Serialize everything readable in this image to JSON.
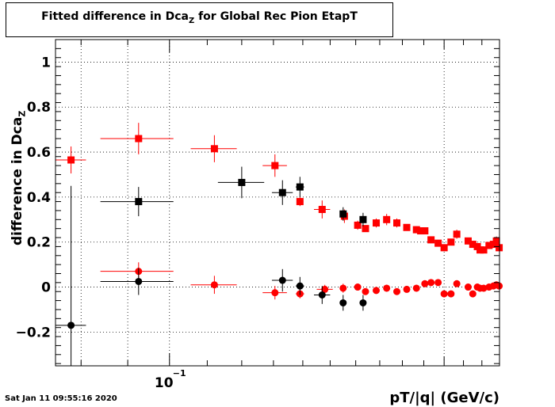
{
  "page": {
    "title_main": "Fitted difference in Dca",
    "title_sub": "Z",
    "title_rest": " for Global Rec Pion EtapT",
    "timestamp": "Sat Jan 11 09:55:16 2020"
  },
  "chart_data": {
    "type": "scatter",
    "title": "Fitted difference in Dca_Z for Global Rec Pion EtapT",
    "xlabel": "pT/|q| (GeV/c)",
    "ylabel": "difference in Dca_Z",
    "xscale": "log",
    "xlim": [
      0.075,
      0.23
    ],
    "ylim": [
      -0.35,
      1.1
    ],
    "yticks": [
      -0.2,
      0,
      0.2,
      0.4,
      0.6,
      0.8,
      1
    ],
    "ytick_labels": [
      "−0.2",
      "0",
      "0.2",
      "0.4",
      "0.6",
      "0.8",
      "1"
    ],
    "xticks": [
      0.1
    ],
    "xtick_labels": [
      "10",
      "−1"
    ],
    "grid": true,
    "colors": {
      "red": "#ff0000",
      "black": "#000000"
    },
    "series": [
      {
        "color": "#ff0000",
        "marker": "square",
        "x": [
          0.078,
          0.0925,
          0.112,
          0.1305,
          0.139,
          0.147,
          0.1555,
          0.1608,
          0.164,
          0.1685,
          0.173,
          0.1775,
          0.182,
          0.1865,
          0.1885,
          0.1905,
          0.1935,
          0.197,
          0.2,
          0.2035,
          0.2065,
          0.2125,
          0.215,
          0.2175,
          0.219,
          0.221,
          0.224,
          0.2265,
          0.2282,
          0.2298
        ],
        "y": [
          0.565,
          0.66,
          0.615,
          0.54,
          0.38,
          0.345,
          0.315,
          0.275,
          0.26,
          0.285,
          0.3,
          0.285,
          0.265,
          0.255,
          0.25,
          0.25,
          0.21,
          0.195,
          0.175,
          0.2,
          0.235,
          0.205,
          0.19,
          0.18,
          0.165,
          0.165,
          0.185,
          0.19,
          0.205,
          0.175
        ],
        "xerr": [
          0.003,
          0.0085,
          0.0065,
          0.004,
          0.0012,
          0.003,
          0.001,
          0.0006,
          0.0005,
          0.0006,
          0.0006,
          0.0006,
          0.0005,
          0.0005,
          0.0005,
          0.0005,
          0.0006,
          0.0006,
          0.0005,
          0.0005,
          0.0005,
          0.0004,
          0.0004,
          0.0004,
          0.0004,
          0.0004,
          0.0004,
          0.0004,
          0.0004,
          0.0004
        ],
        "yerr": [
          0.06,
          0.07,
          0.06,
          0.05,
          0.02,
          0.04,
          0.03,
          0.02,
          0.015,
          0.02,
          0.025,
          0.02,
          0.015,
          0.015,
          0.015,
          0.015,
          0.015,
          0.015,
          0.015,
          0.015,
          0.02,
          0.015,
          0.015,
          0.015,
          0.015,
          0.015,
          0.015,
          0.015,
          0.02,
          0.015
        ]
      },
      {
        "color": "#000000",
        "marker": "square",
        "x": [
          0.0925,
          0.12,
          0.133,
          0.139,
          0.155,
          0.163
        ],
        "y": [
          0.38,
          0.465,
          0.42,
          0.445,
          0.325,
          0.3
        ],
        "xerr": [
          0.0085,
          0.007,
          0.0035,
          0.0015,
          0.001,
          0.0007
        ],
        "yerr": [
          0.065,
          0.07,
          0.055,
          0.045,
          0.03,
          0.03
        ]
      },
      {
        "color": "#ff0000",
        "marker": "circle",
        "x": [
          0.0925,
          0.112,
          0.1305,
          0.139,
          0.148,
          0.155,
          0.1608,
          0.164,
          0.1685,
          0.173,
          0.1775,
          0.182,
          0.1865,
          0.1905,
          0.1935,
          0.197,
          0.2,
          0.2035,
          0.2065,
          0.2125,
          0.215,
          0.2175,
          0.219,
          0.221,
          0.224,
          0.2265,
          0.2282,
          0.2298
        ],
        "y": [
          0.07,
          0.01,
          -0.025,
          -0.03,
          -0.01,
          -0.005,
          0.0,
          -0.02,
          -0.015,
          -0.005,
          -0.02,
          -0.01,
          -0.005,
          0.015,
          0.02,
          0.02,
          -0.03,
          -0.03,
          0.015,
          0.0,
          -0.03,
          0.0,
          -0.005,
          -0.005,
          0.0,
          0.005,
          0.01,
          0.005
        ],
        "xerr": [
          0.0085,
          0.0065,
          0.004,
          0.0015,
          0.003,
          0.001,
          0.0006,
          0.0005,
          0.0006,
          0.0006,
          0.0006,
          0.0005,
          0.0005,
          0.0005,
          0.0006,
          0.0006,
          0.0005,
          0.0005,
          0.0005,
          0.0004,
          0.0004,
          0.0004,
          0.0004,
          0.0004,
          0.0004,
          0.0004,
          0.0004,
          0.0004
        ],
        "yerr": [
          0.04,
          0.04,
          0.03,
          0.02,
          0.02,
          0.02,
          0.015,
          0.015,
          0.015,
          0.015,
          0.015,
          0.015,
          0.015,
          0.015,
          0.015,
          0.015,
          0.015,
          0.015,
          0.015,
          0.015,
          0.015,
          0.015,
          0.015,
          0.015,
          0.015,
          0.015,
          0.015,
          0.015
        ]
      },
      {
        "color": "#000000",
        "marker": "circle",
        "x": [
          0.078,
          0.0925,
          0.133,
          0.139,
          0.147,
          0.155,
          0.163
        ],
        "y": [
          -0.17,
          0.025,
          0.03,
          0.005,
          -0.035,
          -0.07,
          -0.07
        ],
        "xerr": [
          0.003,
          0.0085,
          0.0035,
          0.0015,
          0.003,
          0.001,
          0.0007
        ],
        "yerr": [
          0.62,
          0.06,
          0.05,
          0.04,
          0.04,
          0.035,
          0.035
        ]
      }
    ]
  }
}
